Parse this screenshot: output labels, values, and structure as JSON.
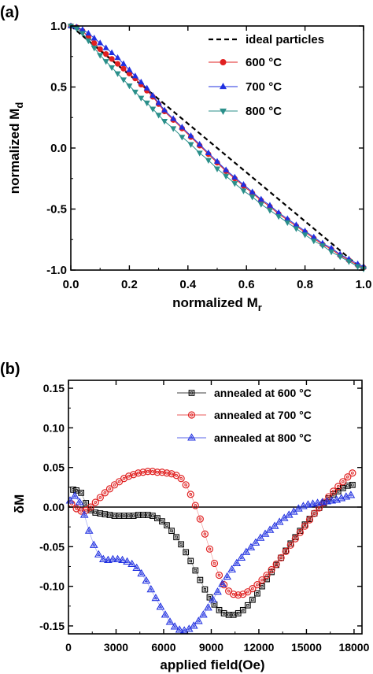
{
  "chart_data": [
    {
      "panel": "(a)",
      "type": "line",
      "xlabel_main": "normalized M",
      "xlabel_sub": "r",
      "ylabel_main": "normalized M",
      "ylabel_sub": "d",
      "xlim": [
        0.0,
        1.0
      ],
      "ylim": [
        -1.0,
        1.0
      ],
      "x_ticks": [
        "0.0",
        "0.2",
        "0.4",
        "0.6",
        "0.8",
        "1.0"
      ],
      "y_ticks": [
        "1.0",
        "0.5",
        "0.0",
        "-0.5",
        "-1.0"
      ],
      "legend_placement": "top-right",
      "series": [
        {
          "name": "ideal particles",
          "color": "#000000",
          "marker": "none",
          "dash": "dashed",
          "x": [
            0,
            1
          ],
          "y": [
            1,
            -1
          ]
        },
        {
          "name": "600 °C",
          "color": "#e02020",
          "marker": "circle",
          "x": [
            0.0,
            0.02,
            0.04,
            0.06,
            0.08,
            0.1,
            0.12,
            0.14,
            0.16,
            0.18,
            0.2,
            0.22,
            0.24,
            0.26,
            0.28,
            0.3,
            0.32,
            0.35,
            0.38,
            0.41,
            0.44,
            0.47,
            0.5,
            0.53,
            0.56,
            0.59,
            0.62,
            0.65,
            0.68,
            0.71,
            0.74,
            0.77,
            0.8,
            0.83,
            0.86,
            0.89,
            0.92,
            0.95,
            0.98,
            1.0
          ],
          "y": [
            1.0,
            0.99,
            0.96,
            0.91,
            0.86,
            0.81,
            0.77,
            0.73,
            0.69,
            0.65,
            0.61,
            0.57,
            0.52,
            0.47,
            0.42,
            0.36,
            0.3,
            0.23,
            0.16,
            0.09,
            0.02,
            -0.05,
            -0.12,
            -0.19,
            -0.25,
            -0.31,
            -0.37,
            -0.43,
            -0.48,
            -0.54,
            -0.59,
            -0.64,
            -0.69,
            -0.74,
            -0.79,
            -0.83,
            -0.88,
            -0.92,
            -0.96,
            -0.98
          ]
        },
        {
          "name": "700 °C",
          "color": "#2030e0",
          "marker": "triangle-up",
          "x": [
            0.0,
            0.02,
            0.04,
            0.06,
            0.08,
            0.1,
            0.12,
            0.14,
            0.16,
            0.18,
            0.2,
            0.22,
            0.24,
            0.26,
            0.28,
            0.3,
            0.32,
            0.35,
            0.38,
            0.41,
            0.44,
            0.47,
            0.5,
            0.53,
            0.56,
            0.59,
            0.62,
            0.65,
            0.68,
            0.71,
            0.74,
            0.77,
            0.8,
            0.83,
            0.86,
            0.89,
            0.92,
            0.95,
            0.98,
            1.0
          ],
          "y": [
            1.0,
            0.99,
            0.97,
            0.94,
            0.9,
            0.86,
            0.82,
            0.78,
            0.74,
            0.69,
            0.64,
            0.59,
            0.54,
            0.49,
            0.43,
            0.37,
            0.31,
            0.24,
            0.17,
            0.1,
            0.03,
            -0.04,
            -0.11,
            -0.18,
            -0.24,
            -0.3,
            -0.36,
            -0.42,
            -0.47,
            -0.53,
            -0.58,
            -0.63,
            -0.68,
            -0.73,
            -0.78,
            -0.82,
            -0.87,
            -0.91,
            -0.95,
            -0.97
          ]
        },
        {
          "name": "800 °C",
          "color": "#2a8f8a",
          "marker": "triangle-down",
          "x": [
            0.0,
            0.02,
            0.04,
            0.06,
            0.08,
            0.1,
            0.12,
            0.14,
            0.16,
            0.18,
            0.2,
            0.22,
            0.24,
            0.26,
            0.28,
            0.3,
            0.32,
            0.35,
            0.38,
            0.41,
            0.44,
            0.47,
            0.5,
            0.53,
            0.56,
            0.59,
            0.62,
            0.65,
            0.68,
            0.71,
            0.74,
            0.77,
            0.8,
            0.83,
            0.86,
            0.89,
            0.92,
            0.95,
            0.98,
            1.0
          ],
          "y": [
            1.0,
            0.98,
            0.94,
            0.88,
            0.82,
            0.76,
            0.71,
            0.66,
            0.61,
            0.56,
            0.51,
            0.46,
            0.41,
            0.37,
            0.32,
            0.27,
            0.22,
            0.16,
            0.09,
            0.03,
            -0.04,
            -0.1,
            -0.17,
            -0.23,
            -0.29,
            -0.35,
            -0.4,
            -0.46,
            -0.51,
            -0.56,
            -0.61,
            -0.66,
            -0.71,
            -0.76,
            -0.8,
            -0.85,
            -0.89,
            -0.93,
            -0.97,
            -0.99
          ]
        }
      ]
    },
    {
      "panel": "(b)",
      "type": "scatter",
      "xlabel": "applied field(Oe)",
      "ylabel": "δM",
      "xlim": [
        0,
        18500
      ],
      "ylim": [
        -0.16,
        0.16
      ],
      "x_ticks": [
        0,
        3000,
        6000,
        9000,
        12000,
        15000,
        18000
      ],
      "y_ticks": [
        0.15,
        0.1,
        0.05,
        0.0,
        -0.05,
        -0.1,
        -0.15
      ],
      "x_tick_labels": [
        "0",
        "3000",
        "6000",
        "9000",
        "12000",
        "15000",
        "18000"
      ],
      "y_tick_labels": [
        "0.15",
        "0.10",
        "0.05",
        "0.00",
        "-0.05",
        "-0.10",
        "-0.15"
      ],
      "legend_placement": "top-right",
      "zero_line": true,
      "series": [
        {
          "name": "annealed at 600 °C",
          "color": "#000000",
          "marker": "square",
          "x": [
            300,
            500,
            800,
            1100,
            1400,
            1700,
            2000,
            2300,
            2600,
            2900,
            3200,
            3500,
            3800,
            4100,
            4400,
            4700,
            5000,
            5300,
            5600,
            5900,
            6200,
            6500,
            6800,
            7100,
            7400,
            7700,
            8000,
            8300,
            8600,
            8900,
            9200,
            9500,
            9800,
            10100,
            10400,
            10700,
            11000,
            11300,
            11600,
            11900,
            12200,
            12500,
            12800,
            13100,
            13400,
            13700,
            14000,
            14300,
            14600,
            14900,
            15200,
            15500,
            15800,
            16100,
            16400,
            16700,
            17000,
            17300,
            17600,
            17900
          ],
          "y": [
            0.022,
            0.021,
            0.018,
            0.005,
            -0.004,
            -0.007,
            -0.008,
            -0.009,
            -0.01,
            -0.011,
            -0.011,
            -0.011,
            -0.011,
            -0.011,
            -0.01,
            -0.01,
            -0.01,
            -0.011,
            -0.014,
            -0.018,
            -0.023,
            -0.03,
            -0.038,
            -0.047,
            -0.057,
            -0.068,
            -0.08,
            -0.092,
            -0.104,
            -0.114,
            -0.123,
            -0.13,
            -0.134,
            -0.136,
            -0.136,
            -0.134,
            -0.13,
            -0.124,
            -0.117,
            -0.109,
            -0.1,
            -0.091,
            -0.082,
            -0.073,
            -0.064,
            -0.055,
            -0.046,
            -0.038,
            -0.03,
            -0.022,
            -0.015,
            -0.008,
            -0.001,
            0.005,
            0.011,
            0.016,
            0.02,
            0.024,
            0.027,
            0.028
          ]
        },
        {
          "name": "annealed at 700 °C",
          "color": "#e02020",
          "marker": "circle",
          "x": [
            200,
            500,
            800,
            1100,
            1400,
            1700,
            2000,
            2300,
            2600,
            2900,
            3200,
            3500,
            3800,
            4100,
            4400,
            4700,
            5000,
            5300,
            5600,
            5900,
            6200,
            6500,
            6800,
            7100,
            7400,
            7700,
            8000,
            8300,
            8600,
            8900,
            9200,
            9500,
            9800,
            10100,
            10400,
            10700,
            11000,
            11300,
            11600,
            11900,
            12200,
            12500,
            12800,
            13100,
            13400,
            13700,
            14000,
            14300,
            14600,
            14900,
            15200,
            15500,
            15800,
            16100,
            16400,
            16700,
            17000,
            17300,
            17600,
            17900
          ],
          "y": [
            0.004,
            -0.002,
            -0.005,
            -0.004,
            0.0,
            0.006,
            0.012,
            0.018,
            0.023,
            0.028,
            0.032,
            0.036,
            0.039,
            0.041,
            0.043,
            0.044,
            0.045,
            0.045,
            0.044,
            0.044,
            0.043,
            0.042,
            0.04,
            0.036,
            0.028,
            0.016,
            0.002,
            -0.015,
            -0.034,
            -0.053,
            -0.071,
            -0.086,
            -0.098,
            -0.106,
            -0.11,
            -0.111,
            -0.11,
            -0.107,
            -0.103,
            -0.098,
            -0.092,
            -0.086,
            -0.079,
            -0.072,
            -0.064,
            -0.056,
            -0.048,
            -0.04,
            -0.032,
            -0.024,
            -0.016,
            -0.008,
            -0.001,
            0.006,
            0.013,
            0.02,
            0.026,
            0.032,
            0.038,
            0.043
          ]
        },
        {
          "name": "annealed at 800 °C",
          "color": "#2030e0",
          "marker": "triangle-up",
          "x": [
            100,
            400,
            700,
            1000,
            1300,
            1600,
            1900,
            2200,
            2500,
            2800,
            3100,
            3400,
            3700,
            4000,
            4300,
            4600,
            4900,
            5200,
            5500,
            5800,
            6100,
            6400,
            6700,
            7000,
            7300,
            7600,
            7900,
            8200,
            8500,
            8800,
            9100,
            9400,
            9700,
            10000,
            10300,
            10600,
            10900,
            11200,
            11500,
            11800,
            12100,
            12400,
            12700,
            13000,
            13300,
            13600,
            13900,
            14200,
            14500,
            14800,
            15100,
            15400,
            15700,
            16000,
            16300,
            16600,
            16900,
            17200,
            17500,
            17800
          ],
          "y": [
            0.008,
            0.014,
            0.006,
            -0.01,
            -0.03,
            -0.048,
            -0.06,
            -0.066,
            -0.067,
            -0.066,
            -0.066,
            -0.067,
            -0.069,
            -0.072,
            -0.077,
            -0.084,
            -0.093,
            -0.104,
            -0.115,
            -0.126,
            -0.136,
            -0.145,
            -0.151,
            -0.155,
            -0.156,
            -0.154,
            -0.15,
            -0.144,
            -0.136,
            -0.127,
            -0.117,
            -0.107,
            -0.097,
            -0.088,
            -0.079,
            -0.071,
            -0.064,
            -0.057,
            -0.051,
            -0.045,
            -0.039,
            -0.034,
            -0.029,
            -0.024,
            -0.019,
            -0.014,
            -0.01,
            -0.006,
            -0.002,
            0.001,
            0.003,
            0.004,
            0.005,
            0.006,
            0.007,
            0.008,
            0.009,
            0.011,
            0.013,
            0.015
          ]
        }
      ]
    }
  ],
  "labels": {
    "panel_a": "(a)",
    "panel_b": "(b)"
  }
}
